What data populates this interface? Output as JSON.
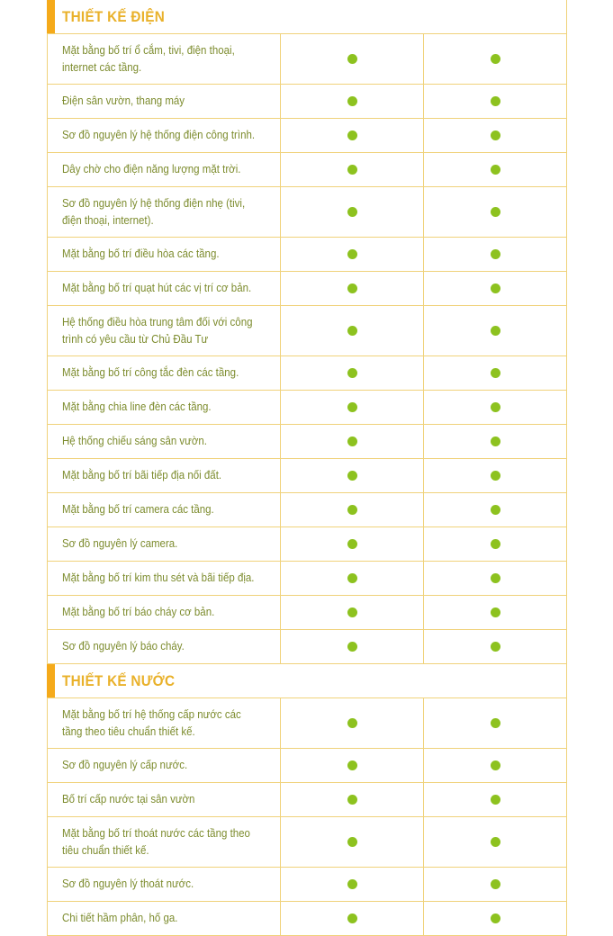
{
  "colors": {
    "accent": "#f5aa1a",
    "title": "#e9b12a",
    "text": "#7d8c2e",
    "dot": "#8dc21f",
    "border": "#f0d27a"
  },
  "sections": [
    {
      "title": "THIẾT KẾ ĐIỆN",
      "rows": [
        {
          "label": "Mặt bằng bố trí ổ cắm, tivi, điện thoại, internet các tầng.",
          "tall": true,
          "col1": true,
          "col2": true
        },
        {
          "label": "Điện sân vườn, thang máy",
          "col1": true,
          "col2": true
        },
        {
          "label": "Sơ đồ nguyên lý hệ thống điện công trình.",
          "col1": true,
          "col2": true
        },
        {
          "label": "Dây chờ cho điện năng lượng mặt trời.",
          "col1": true,
          "col2": true
        },
        {
          "label": "Sơ đồ nguyên lý hệ thống điện nhẹ (tivi, điện thoại, internet).",
          "tall": true,
          "col1": true,
          "col2": true
        },
        {
          "label": "Mặt bằng bố trí điều hòa các tầng.",
          "col1": true,
          "col2": true
        },
        {
          "label": "Mặt bằng bố trí quạt hút các vị trí cơ bản.",
          "col1": true,
          "col2": true
        },
        {
          "label": "Hệ thống điều hòa trung tâm đối với công trình có yêu cầu từ Chủ Đầu Tư",
          "tall": true,
          "col1": true,
          "col2": true
        },
        {
          "label": "Mặt bằng bố trí công tắc đèn các tầng.",
          "col1": true,
          "col2": true
        },
        {
          "label": "Mặt bằng chia line đèn các tầng.",
          "col1": true,
          "col2": true
        },
        {
          "label": "Hệ thống chiếu sáng sân vườn.",
          "col1": true,
          "col2": true
        },
        {
          "label": "Mặt bằng bố trí bãi tiếp địa nối đất.",
          "col1": true,
          "col2": true
        },
        {
          "label": "Mặt bằng bố trí camera các tầng.",
          "col1": true,
          "col2": true
        },
        {
          "label": "Sơ đồ nguyên lý camera.",
          "col1": true,
          "col2": true
        },
        {
          "label": "Mặt bằng bố trí kim thu sét và bãi tiếp địa.",
          "col1": true,
          "col2": true
        },
        {
          "label": "Mặt bằng bố trí báo cháy cơ bản.",
          "col1": true,
          "col2": true
        },
        {
          "label": "Sơ đồ nguyên lý báo cháy.",
          "col1": true,
          "col2": true
        }
      ]
    },
    {
      "title": "THIẾT KẾ NƯỚC",
      "rows": [
        {
          "label": "Mặt bằng bố trí hệ thống cấp nước các tầng theo tiêu chuẩn thiết kế.",
          "tall": true,
          "col1": true,
          "col2": true
        },
        {
          "label": "Sơ đồ nguyên lý cấp nước.",
          "col1": true,
          "col2": true
        },
        {
          "label": "Bố trí cấp nước tại sân vườn",
          "col1": true,
          "col2": true
        },
        {
          "label": "Mặt bằng bố trí thoát nước các tầng theo tiêu chuẩn thiết kế.",
          "tall": true,
          "col1": true,
          "col2": true
        },
        {
          "label": "Sơ đồ nguyên lý thoát nước.",
          "col1": true,
          "col2": true
        },
        {
          "label": "Chi tiết hầm phân, hố ga.",
          "col1": true,
          "col2": true
        }
      ]
    }
  ]
}
